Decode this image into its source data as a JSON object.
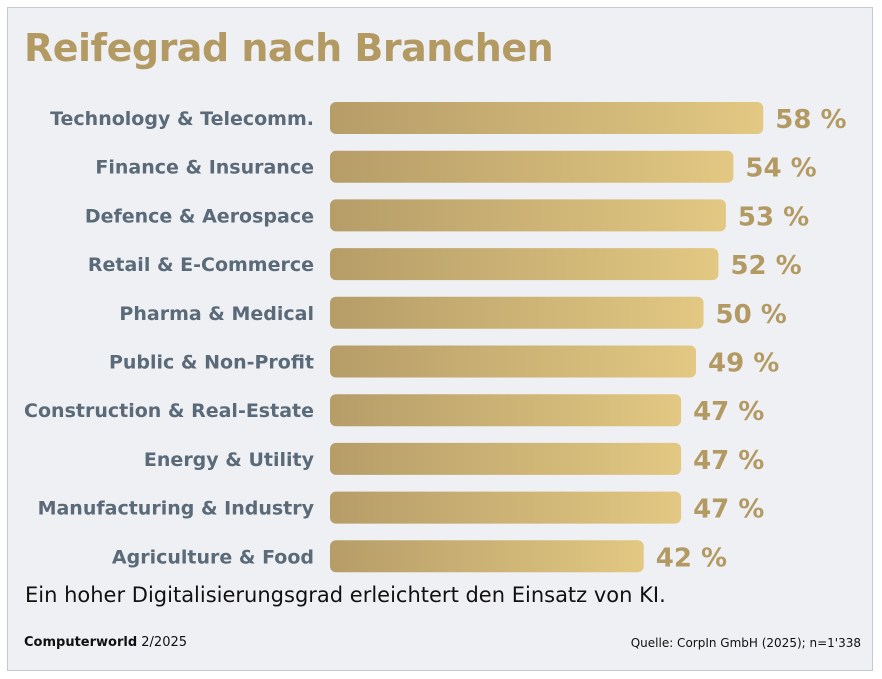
{
  "title": "Reifegrad nach Branchen",
  "subtitle": "Ein hoher Digitalisierungsgrad erleichtert den Einsatz von KI.",
  "footer": {
    "publication": "Computerworld",
    "issue": "2/2025",
    "source": "Quelle: CorpIn GmbH (2025); n=1'338"
  },
  "colors": {
    "bar_start": "#b69d68",
    "bar_end": "#e2c882",
    "value_label": "#b39a63",
    "category_label": "#5a6a78"
  },
  "chart_data": {
    "type": "bar",
    "orientation": "horizontal",
    "categories": [
      "Technology & Telecomm.",
      "Finance & Insurance",
      "Defence & Aerospace",
      "Retail & E-Commerce",
      "Pharma & Medical",
      "Public & Non-Profit",
      "Construction & Real-Estate",
      "Energy & Utility",
      "Manufacturing & Industry",
      "Agriculture & Food"
    ],
    "values": [
      58,
      54,
      53,
      52,
      50,
      49,
      47,
      47,
      47,
      42
    ],
    "value_labels": [
      "58 %",
      "54 %",
      "53 %",
      "52 %",
      "50 %",
      "49 %",
      "47 %",
      "47 %",
      "47 %",
      "42 %"
    ],
    "grid": false,
    "legend": "none"
  }
}
